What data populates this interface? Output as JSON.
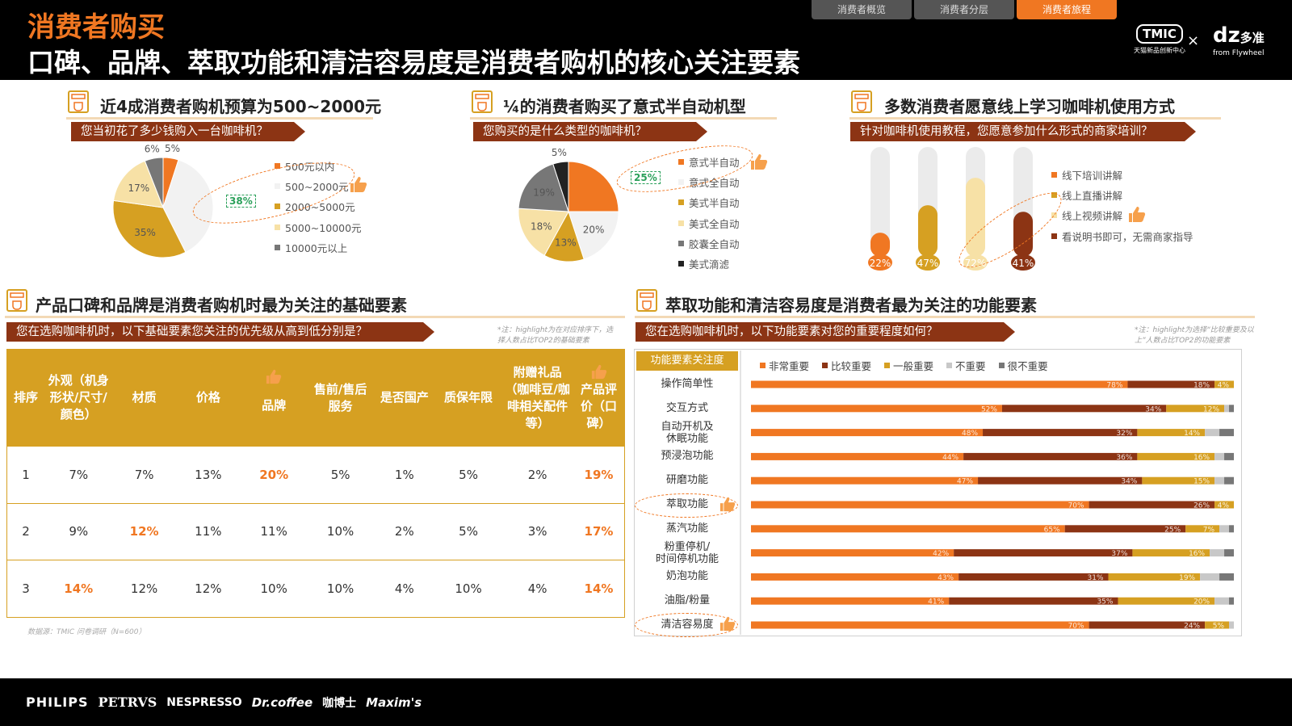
{
  "header": {
    "supertitle": "消费者购买",
    "title": "口碑、品牌、萃取功能和清洁容易度是消费者购机的核心关注要素",
    "tabs": [
      "消费者概览",
      "消费者分层",
      "消费者旅程"
    ],
    "active_tab": "消费者旅程",
    "logo_tmic": "TMIC",
    "logo_tmic_sub": "天猫新品创新中心",
    "logo_x": "×",
    "logo_dz": "dz",
    "logo_dz_cn": "多准",
    "logo_dz_sub": "from Flywheel"
  },
  "colors": {
    "orange": "#f07722",
    "brown": "#8c3414",
    "gold": "#d6a022",
    "lightgold": "#f7e1a6",
    "lightgray": "#c8c8c8",
    "darkgray": "#777777",
    "black": "#222222"
  },
  "sec1": {
    "title": "近4成消费者购机预算为500~2000元",
    "question": "您当初花了多少钱购入一台咖啡机？",
    "highlight": "38%"
  },
  "sec2": {
    "title": "¼的消费者购买了意式半自动机型",
    "question": "您购买的是什么类型的咖啡机？",
    "highlight": "25%"
  },
  "sec3": {
    "title": "多数消费者愿意线上学习咖啡机使用方式",
    "question": "针对咖啡机使用教程，您愿意参加什么形式的商家培训？"
  },
  "sec4": {
    "title": "产品口碑和品牌是消费者购机时最为关注的基础要素",
    "question": "您在选购咖啡机时，以下基础要素您关注的优先级从高到低分别是？",
    "note": "*注：highlight为在对应排序下，选择人数占比TOP2的基础要素",
    "columns": [
      "排序",
      "外观（机身形状/尺寸/颜色）",
      "材质",
      "价格",
      "品牌",
      "售前/售后服务",
      "是否国产",
      "质保年限",
      "附赠礼品（咖啡豆/咖啡相关配件等）",
      "产品评价（口碑）"
    ],
    "rows": [
      [
        "1",
        "7%",
        "7%",
        "13%",
        "20%",
        "5%",
        "1%",
        "5%",
        "2%",
        "19%"
      ],
      [
        "2",
        "9%",
        "12%",
        "11%",
        "11%",
        "10%",
        "2%",
        "5%",
        "3%",
        "17%"
      ],
      [
        "3",
        "14%",
        "12%",
        "12%",
        "10%",
        "10%",
        "4%",
        "10%",
        "4%",
        "14%"
      ]
    ],
    "highlights": [
      [
        4,
        9
      ],
      [
        2,
        9
      ],
      [
        1,
        9
      ]
    ],
    "source": "数据源：TMIC 问卷调研（N=600）"
  },
  "sec5": {
    "title": "萃取功能和清洁容易度是消费者最为关注的功能要素",
    "question": "您在选购咖啡机时，以下功能要素对您的重要程度如何？",
    "note": "*注：highlight为选择“比较重要及以上”人数占比TOP2的功能要素",
    "header_label": "功能要素关注度"
  },
  "footer": {
    "brands": [
      "PHILIPS",
      "PETRVS",
      "NESPRESSO",
      "Dr.coffee",
      "咖博士",
      "Maxim's"
    ]
  },
  "chart_data": [
    {
      "type": "pie",
      "categories": [
        "500元以内",
        "500~2000元",
        "2000~5000元",
        "5000~10000元",
        "10000元以上"
      ],
      "values": [
        5,
        38,
        35,
        17,
        6
      ],
      "labels": [
        "5%",
        "",
        "35%",
        "17%",
        "6%"
      ],
      "colors": [
        "#f07722",
        "#f2f2f2",
        "#d6a022",
        "#f7e1a6",
        "#777777"
      ]
    },
    {
      "type": "pie",
      "categories": [
        "意式半自动",
        "意式全自动",
        "美式半自动",
        "美式全自动",
        "胶囊全自动",
        "美式滴滤"
      ],
      "values": [
        25,
        20,
        13,
        18,
        19,
        5
      ],
      "labels": [
        "",
        "20%",
        "13%",
        "18%",
        "19%",
        "5%"
      ],
      "colors": [
        "#f07722",
        "#f2f2f2",
        "#d6a022",
        "#f7e1a6",
        "#777777",
        "#222222"
      ]
    },
    {
      "type": "bar",
      "categories": [
        "线下培训讲解",
        "线上直播讲解",
        "线上视频讲解",
        "看说明书即可，无需商家指导"
      ],
      "values": [
        22,
        47,
        72,
        41
      ],
      "labels": [
        "22%",
        "47%",
        "72%",
        "41%"
      ],
      "ylim": [
        0,
        100
      ],
      "colors": [
        "#f07722",
        "#d6a022",
        "#f7e1a6",
        "#8c3414"
      ]
    },
    {
      "type": "bar",
      "categories": [
        "操作简单性",
        "交互方式",
        "自动开机及休眠功能",
        "预浸泡功能",
        "研磨功能",
        "萃取功能",
        "蒸汽功能",
        "粉重停机/时间停机功能",
        "奶泡功能",
        "油脂/粉量",
        "清洁容易度"
      ],
      "series": [
        {
          "name": "非常重要",
          "values": [
            78,
            52,
            48,
            44,
            47,
            70,
            65,
            42,
            43,
            41,
            70
          ],
          "labels": [
            "78%",
            "52%",
            "48%",
            "44%",
            "47%",
            "70%",
            "65%",
            "42%",
            "43%",
            "41%",
            "70%"
          ]
        },
        {
          "name": "比较重要",
          "values": [
            18,
            34,
            32,
            36,
            34,
            26,
            25,
            37,
            31,
            35,
            24
          ],
          "labels": [
            "18%",
            "34%",
            "32%",
            "36%",
            "34%",
            "26%",
            "25%",
            "37%",
            "31%",
            "35%",
            "24%"
          ]
        },
        {
          "name": "一般重要",
          "values": [
            4,
            12,
            14,
            16,
            15,
            4,
            7,
            16,
            19,
            20,
            5
          ],
          "labels": [
            "4%",
            "12%",
            "14%",
            "16%",
            "15%",
            "4%",
            "7%",
            "16%",
            "19%",
            "20%",
            "5%"
          ]
        },
        {
          "name": "不重要",
          "values": [
            0,
            1,
            3,
            2,
            2,
            0,
            2,
            3,
            4,
            3,
            1
          ],
          "labels": [
            "",
            "",
            "",
            "",
            "",
            "",
            "",
            "",
            "",
            "",
            ""
          ]
        },
        {
          "name": "很不重要",
          "values": [
            0,
            1,
            3,
            2,
            2,
            0,
            1,
            2,
            3,
            1,
            0
          ],
          "labels": [
            "",
            "",
            "",
            "",
            "",
            "",
            "",
            "",
            "",
            "",
            ""
          ]
        }
      ],
      "stacked": true,
      "xlim": [
        0,
        100
      ],
      "colors": [
        "#f07722",
        "#8c3414",
        "#d6a022",
        "#c8c8c8",
        "#777777"
      ]
    }
  ]
}
